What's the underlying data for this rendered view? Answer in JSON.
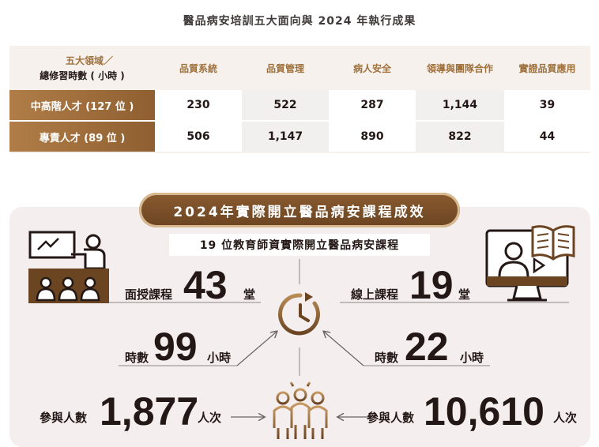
{
  "title": "醫品病安培訓五大面向與 2024 年執行成果",
  "table": {
    "corner_top": "五大領域／",
    "corner_bottom": "總修習時數 ( 小時 )",
    "columns": [
      "品質系統",
      "品質管理",
      "病人安全",
      "領導與團隊合作",
      "實證品質應用"
    ],
    "rows": [
      {
        "label": "中高階人才 (127 位 )",
        "values": [
          "230",
          "522",
          "287",
          "1,144",
          "39"
        ]
      },
      {
        "label": "專責人才 (89 位 )",
        "values": [
          "506",
          "1,147",
          "890",
          "822",
          "44"
        ]
      }
    ]
  },
  "summary": {
    "banner": "2024年實際開立醫品病安課程成效",
    "subtitle": "19 位教育師資實際開立醫品病安課程",
    "in_person": {
      "label": "面授課程",
      "count": "43",
      "unit": "堂"
    },
    "online": {
      "label": "線上課程",
      "count": "19",
      "unit": "堂"
    },
    "hours_left": {
      "label": "時數",
      "value": "99",
      "unit": "小時"
    },
    "hours_right": {
      "label": "時數",
      "value": "22",
      "unit": "小時"
    },
    "participants_left": {
      "label": "參與人數",
      "value": "1,877",
      "unit": "人次"
    },
    "participants_right": {
      "label": "參與人數",
      "value": "10,610",
      "unit": "人次"
    }
  },
  "colors": {
    "brown": "#8f5f31",
    "gold": "#a0713c",
    "panel": "#f4efee"
  }
}
